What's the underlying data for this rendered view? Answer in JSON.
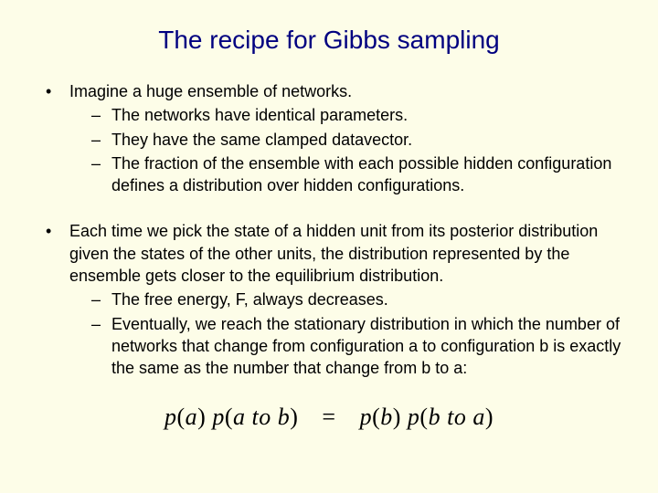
{
  "slide": {
    "background_color": "#fdfde8",
    "title_color": "#000080",
    "body_color": "#000000",
    "title_fontsize": 28,
    "body_fontsize": 18,
    "equation_fontsize": 26,
    "title": "The recipe for Gibbs sampling",
    "blocks": [
      {
        "lead": "Imagine a huge ensemble of networks.",
        "subs": [
          "The networks have identical parameters.",
          "They have the same clamped datavector.",
          "The fraction of the ensemble with each possible hidden configuration defines a distribution over hidden configurations."
        ]
      },
      {
        "lead": "Each time we pick the state of a hidden unit from its posterior distribution given the states of the other units, the distribution represented by the ensemble gets closer to the equilibrium distribution.",
        "subs": [
          "The free energy, F, always decreases.",
          "Eventually, we reach the stationary distribution in which the number of networks that change from configuration a to configuration b is exactly the same as the number that change from b to a:"
        ]
      }
    ],
    "equation": {
      "lhs_outer": "p",
      "lhs_arg1": "a",
      "lhs_inner": "p",
      "lhs_arg2": "a to b",
      "rhs_outer": "p",
      "rhs_arg1": "b",
      "rhs_inner": "p",
      "rhs_arg2": "b to a",
      "eq": "="
    }
  }
}
